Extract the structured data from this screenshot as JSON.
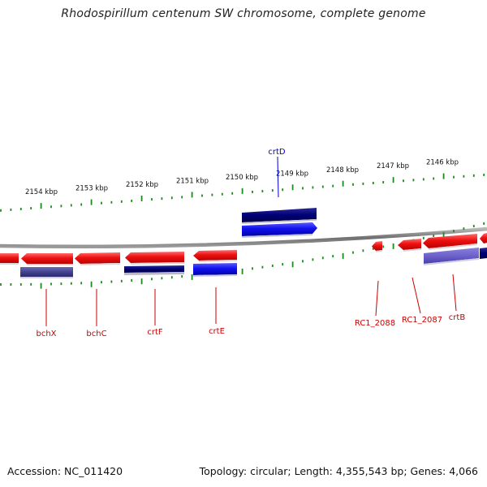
{
  "title": "Rhodospirillum centenum SW chromosome, complete genome",
  "footer": {
    "accession": "Accession: NC_011420",
    "summary": "Topology: circular; Length: 4,355,543 bp; Genes: 4,066"
  },
  "colors": {
    "backbone": "#808080",
    "tick": "#1c8a1c",
    "reverse_gene": "#ee1111",
    "forward_gene": "#1111ee",
    "forward_dark": "#000077",
    "pale_blue": "#6a5fc8",
    "reverse_label": "#cc0000",
    "forward_label": "#0000cc"
  },
  "ticks": [
    {
      "label": "2154 kbp"
    },
    {
      "label": "2153 kbp"
    },
    {
      "label": "2152 kbp"
    },
    {
      "label": "2151 kbp"
    },
    {
      "label": "2150 kbp"
    },
    {
      "label": "2149 kbp"
    },
    {
      "label": "2148 kbp"
    },
    {
      "label": "2147 kbp"
    },
    {
      "label": "2146 kbp"
    }
  ],
  "gene_labels": [
    {
      "name": "crtD",
      "strand": "forward"
    },
    {
      "name": "bchX",
      "strand": "reverse"
    },
    {
      "name": "bchC",
      "strand": "reverse"
    },
    {
      "name": "crtF",
      "strand": "reverse"
    },
    {
      "name": "crtE",
      "strand": "reverse"
    },
    {
      "name": "RC1_2088",
      "strand": "reverse"
    },
    {
      "name": "RC1_2087",
      "strand": "reverse"
    },
    {
      "name": "crtB",
      "strand": "reverse"
    }
  ]
}
